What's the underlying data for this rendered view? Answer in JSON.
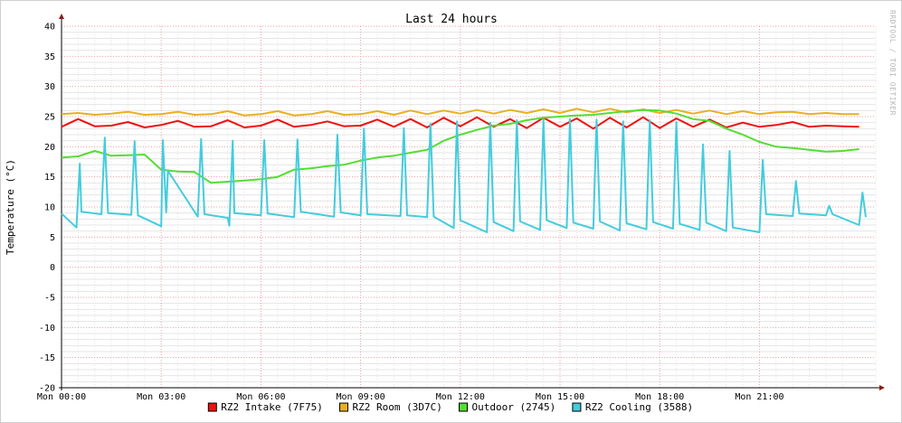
{
  "chart_data": {
    "type": "line",
    "title": "Last 24 hours",
    "ylabel": "Temperature (°C)",
    "xlabel": "",
    "watermark": "RRDTOOL / TOBI OETIKER",
    "ylim": [
      -20,
      40
    ],
    "xlim": [
      0,
      24.5
    ],
    "y_ticks": [
      40,
      35,
      30,
      25,
      20,
      15,
      10,
      5,
      0,
      -5,
      -10,
      -15,
      -20
    ],
    "x_ticks": [
      {
        "label": "Mon 00:00",
        "hour": 0
      },
      {
        "label": "Mon 03:00",
        "hour": 3
      },
      {
        "label": "Mon 06:00",
        "hour": 6
      },
      {
        "label": "Mon 09:00",
        "hour": 9
      },
      {
        "label": "Mon 12:00",
        "hour": 12
      },
      {
        "label": "Mon 15:00",
        "hour": 15
      },
      {
        "label": "Mon 18:00",
        "hour": 18
      },
      {
        "label": "Mon 21:00",
        "hour": 21
      }
    ],
    "grid": true,
    "legend_position": "bottom",
    "series": [
      {
        "name": "RZ2 Intake (7F75)",
        "color": "#ee1111",
        "x": [
          0,
          0.5,
          1,
          1.5,
          2,
          2.5,
          3,
          3.5,
          4,
          4.5,
          5,
          5.5,
          6,
          6.5,
          7,
          7.5,
          8,
          8.5,
          9,
          9.5,
          10,
          10.5,
          11,
          11.5,
          12,
          12.5,
          13,
          13.5,
          14,
          14.5,
          15,
          15.5,
          16,
          16.5,
          17,
          17.5,
          18,
          18.5,
          19,
          19.5,
          20,
          20.5,
          21,
          21.5,
          22,
          22.5,
          23,
          23.5,
          24
        ],
        "y": [
          23.3,
          24.6,
          23.4,
          23.5,
          24.1,
          23.2,
          23.6,
          24.3,
          23.3,
          23.4,
          24.4,
          23.2,
          23.5,
          24.5,
          23.3,
          23.6,
          24.2,
          23.4,
          23.5,
          24.5,
          23.3,
          24.6,
          23.2,
          24.8,
          23.4,
          24.9,
          23.3,
          24.6,
          23.1,
          24.8,
          23.3,
          24.7,
          23.0,
          24.8,
          23.2,
          24.9,
          23.1,
          24.7,
          23.3,
          24.5,
          23.2,
          24.0,
          23.3,
          23.6,
          24.1,
          23.3,
          23.5,
          23.4,
          23.3
        ]
      },
      {
        "name": "RZ2 Room (3D7C)",
        "color": "#e8b020",
        "x": [
          0,
          0.5,
          1,
          1.5,
          2,
          2.5,
          3,
          3.5,
          4,
          4.5,
          5,
          5.5,
          6,
          6.5,
          7,
          7.5,
          8,
          8.5,
          9,
          9.5,
          10,
          10.5,
          11,
          11.5,
          12,
          12.5,
          13,
          13.5,
          14,
          14.5,
          15,
          15.5,
          16,
          16.5,
          17,
          17.5,
          18,
          18.5,
          19,
          19.5,
          20,
          20.5,
          21,
          21.5,
          22,
          22.5,
          23,
          23.5,
          24
        ],
        "y": [
          25.4,
          25.6,
          25.3,
          25.5,
          25.8,
          25.3,
          25.4,
          25.8,
          25.3,
          25.4,
          25.9,
          25.2,
          25.4,
          25.9,
          25.2,
          25.4,
          25.9,
          25.3,
          25.4,
          25.9,
          25.3,
          26.0,
          25.4,
          26.0,
          25.5,
          26.1,
          25.5,
          26.1,
          25.6,
          26.2,
          25.6,
          26.3,
          25.7,
          26.3,
          25.7,
          26.2,
          25.6,
          26.1,
          25.5,
          26.0,
          25.4,
          25.9,
          25.4,
          25.7,
          25.8,
          25.4,
          25.6,
          25.4,
          25.4
        ]
      },
      {
        "name": "Outdoor (2745)",
        "color": "#55dd33",
        "x": [
          0,
          0.5,
          1,
          1.5,
          2,
          2.5,
          3,
          3.5,
          4,
          4.5,
          5,
          5.5,
          6,
          6.5,
          7,
          7.5,
          8,
          8.5,
          9,
          9.5,
          10,
          10.5,
          11,
          11.5,
          12,
          12.5,
          13,
          13.5,
          14,
          14.5,
          15,
          15.5,
          16,
          16.5,
          17,
          17.5,
          18,
          18.5,
          19,
          19.5,
          20,
          20.5,
          21,
          21.5,
          22,
          22.5,
          23,
          23.5,
          24
        ],
        "y": [
          18.2,
          18.4,
          19.3,
          18.5,
          18.6,
          18.7,
          16.2,
          15.9,
          15.8,
          14.0,
          14.2,
          14.4,
          14.6,
          15.0,
          16.2,
          16.4,
          16.8,
          17.0,
          17.7,
          18.2,
          18.5,
          19.0,
          19.5,
          21.0,
          22.0,
          22.8,
          23.5,
          23.8,
          24.4,
          24.8,
          25.0,
          25.2,
          25.3,
          25.6,
          25.9,
          26.1,
          26.0,
          25.5,
          24.6,
          24.3,
          23.0,
          22.0,
          20.8,
          20.0,
          19.8,
          19.5,
          19.2,
          19.3,
          19.6
        ]
      },
      {
        "name": "RZ2 Cooling (3588)",
        "color": "#44ccdd",
        "x": [
          0,
          0.45,
          0.55,
          0.6,
          1.2,
          1.3,
          1.4,
          2.1,
          2.2,
          2.3,
          3,
          3.05,
          3.15,
          3.2,
          4.1,
          4.2,
          4.3,
          5.0,
          5.05,
          5.15,
          5.2,
          6.0,
          6.1,
          6.2,
          7.0,
          7.1,
          7.2,
          8.2,
          8.3,
          8.4,
          9.0,
          9.1,
          9.2,
          10.2,
          10.3,
          10.4,
          11.0,
          11.1,
          11.2,
          11.8,
          11.9,
          12.0,
          12.8,
          12.9,
          13.0,
          13.6,
          13.7,
          13.8,
          14.4,
          14.5,
          14.6,
          15.2,
          15.3,
          15.4,
          16.0,
          16.1,
          16.2,
          16.8,
          16.9,
          17.0,
          17.6,
          17.7,
          17.8,
          18.4,
          18.5,
          18.6,
          19.2,
          19.3,
          19.4,
          20.0,
          20.1,
          20.2,
          21.0,
          21.1,
          21.2,
          22.0,
          22.1,
          22.2,
          23.0,
          23.1,
          23.2,
          24.0,
          24.1,
          24.2
        ],
        "y": [
          8.9,
          6.6,
          17.2,
          9.2,
          8.8,
          21.5,
          9.0,
          8.7,
          20.9,
          8.6,
          6.8,
          21.1,
          9.1,
          16.0,
          8.4,
          21.3,
          8.8,
          8.2,
          6.9,
          21.0,
          9.0,
          8.6,
          21.1,
          8.9,
          8.3,
          21.2,
          9.2,
          8.4,
          22.0,
          9.1,
          8.6,
          23.0,
          8.8,
          8.5,
          23.1,
          8.6,
          8.3,
          23.8,
          8.4,
          6.5,
          24.2,
          7.8,
          5.8,
          24.0,
          7.5,
          6.0,
          24.4,
          7.6,
          6.2,
          24.5,
          7.8,
          6.5,
          24.6,
          7.4,
          6.4,
          24.5,
          7.6,
          6.1,
          24.2,
          7.3,
          6.3,
          24.4,
          7.5,
          6.4,
          24.1,
          7.2,
          6.2,
          20.4,
          7.4,
          6.0,
          19.3,
          6.6,
          5.8,
          17.8,
          8.8,
          8.5,
          14.3,
          8.9,
          8.6,
          10.2,
          8.8,
          7.0,
          12.4,
          8.3
        ]
      }
    ]
  }
}
